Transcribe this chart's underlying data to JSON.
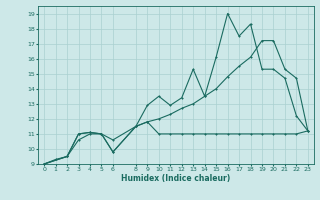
{
  "xlabel": "Humidex (Indice chaleur)",
  "xlim": [
    -0.5,
    23.5
  ],
  "ylim": [
    9,
    19.5
  ],
  "xtick_vals": [
    0,
    1,
    2,
    3,
    4,
    5,
    6,
    8,
    9,
    10,
    11,
    12,
    13,
    14,
    15,
    16,
    17,
    18,
    19,
    20,
    21,
    22,
    23
  ],
  "ytick_vals": [
    9,
    10,
    11,
    12,
    13,
    14,
    15,
    16,
    17,
    18,
    19
  ],
  "bg_color": "#cde8e8",
  "grid_color": "#aad0d0",
  "line_color": "#1a6b60",
  "line1_x": [
    0,
    1,
    2,
    3,
    4,
    5,
    6,
    8,
    9,
    10,
    11,
    12,
    13,
    14,
    15,
    16,
    17,
    18,
    19,
    20,
    21,
    22,
    23
  ],
  "line1_y": [
    9.0,
    9.3,
    9.5,
    10.6,
    11.0,
    11.0,
    10.6,
    11.5,
    11.8,
    11.0,
    11.0,
    11.0,
    11.0,
    11.0,
    11.0,
    11.0,
    11.0,
    11.0,
    11.0,
    11.0,
    11.0,
    11.0,
    11.2
  ],
  "line2_x": [
    0,
    2,
    3,
    4,
    5,
    6,
    8,
    9,
    10,
    11,
    12,
    13,
    14,
    15,
    16,
    17,
    18,
    19,
    20,
    21,
    22,
    23
  ],
  "line2_y": [
    9.0,
    9.5,
    11.0,
    11.1,
    11.0,
    9.8,
    11.5,
    12.9,
    13.5,
    12.9,
    13.4,
    15.3,
    13.5,
    16.1,
    19.0,
    17.5,
    18.3,
    15.3,
    15.3,
    14.7,
    12.2,
    11.2
  ],
  "line3_x": [
    0,
    2,
    3,
    4,
    5,
    6,
    8,
    9,
    10,
    11,
    12,
    13,
    14,
    15,
    16,
    17,
    18,
    19,
    20,
    21,
    22,
    23
  ],
  "line3_y": [
    9.0,
    9.5,
    11.0,
    11.1,
    11.0,
    9.8,
    11.5,
    11.8,
    12.0,
    12.3,
    12.7,
    13.0,
    13.5,
    14.0,
    14.8,
    15.5,
    16.1,
    17.2,
    17.2,
    15.3,
    14.7,
    11.2
  ]
}
